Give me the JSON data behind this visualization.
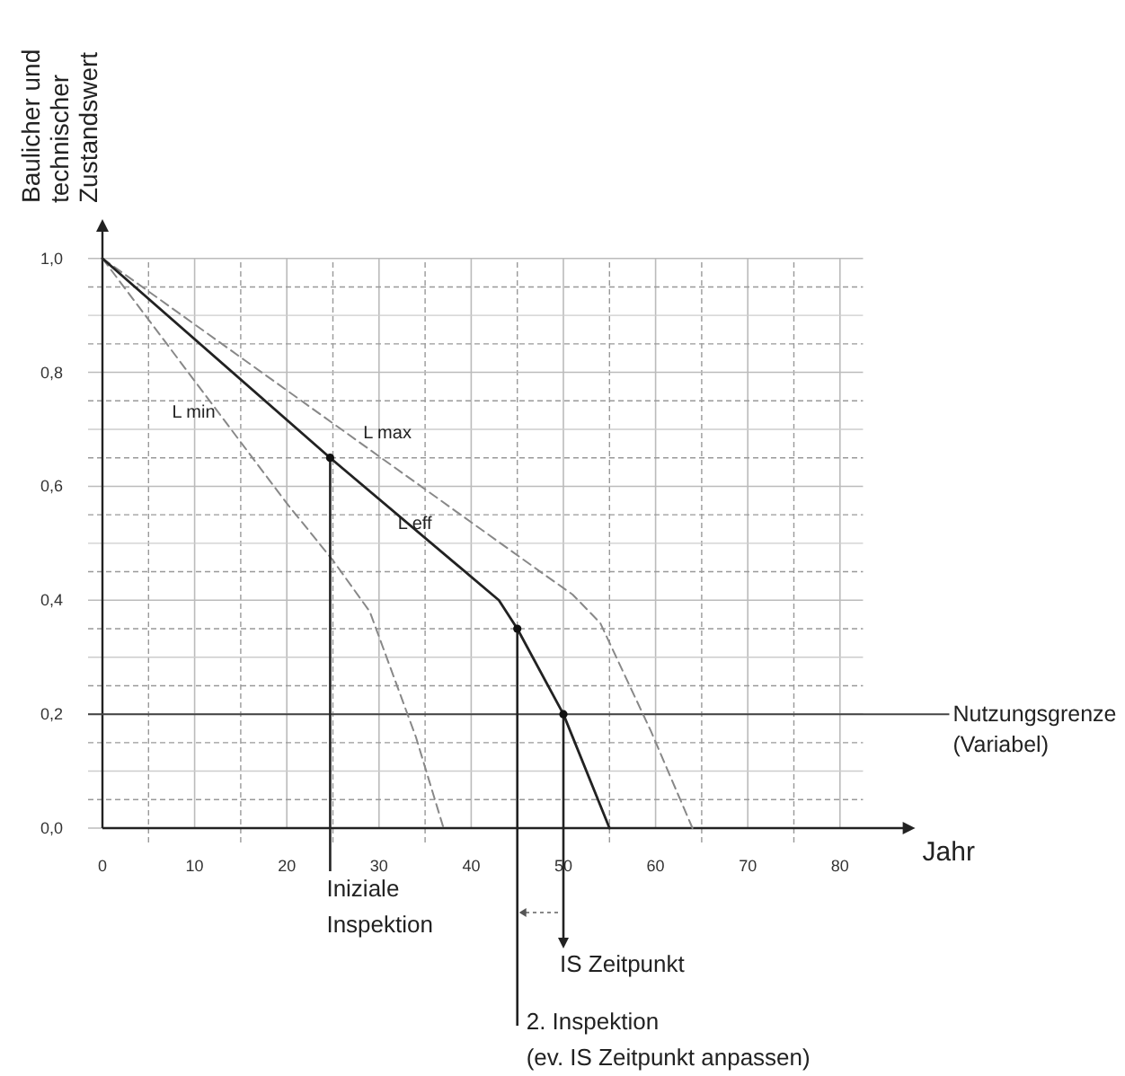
{
  "chart_data": {
    "type": "line",
    "ylabel": "Baulicher und\ntechnischer\nZustandswert",
    "xlabel": "Jahr",
    "xlim": [
      0,
      87
    ],
    "ylim": [
      0,
      1.05
    ],
    "xticks": [
      0,
      10,
      20,
      30,
      40,
      50,
      60,
      70,
      80
    ],
    "yticks": [
      {
        "value": 0,
        "label": "0,0"
      },
      {
        "value": 0.2,
        "label": "0,2"
      },
      {
        "value": 0.4,
        "label": "0,4"
      },
      {
        "value": 0.6,
        "label": "0,6"
      },
      {
        "value": 0.8,
        "label": "0,8"
      },
      {
        "value": 1.0,
        "label": "1,0"
      }
    ],
    "grid": true,
    "series": [
      {
        "name": "L max",
        "color": "#888888",
        "line_style": "dashed",
        "x": [
          0,
          47.5,
          51,
          54,
          59.5,
          64
        ],
        "values": [
          1.0,
          0.45,
          0.41,
          0.36,
          0.17,
          0
        ]
      },
      {
        "name": "L min",
        "color": "#888888",
        "line_style": "dashed",
        "x": [
          0,
          20,
          25,
          29,
          34,
          37
        ],
        "values": [
          1.0,
          0.57,
          0.47,
          0.38,
          0.16,
          0
        ]
      },
      {
        "name": "L eff",
        "color": "#222222",
        "line_style": "solid",
        "x": [
          0,
          24.7,
          43,
          45,
          50,
          55
        ],
        "values": [
          1.0,
          0.65,
          0.4,
          0.35,
          0.2,
          0
        ]
      }
    ],
    "ref_lines": [
      {
        "axis": "y",
        "value": 0.2,
        "label": "Nutzungsgrenze\n(Variabel)"
      }
    ],
    "annotations": [
      {
        "text": "Iniziale\nInspektion",
        "x": 24.7,
        "y": 0.65
      },
      {
        "text": "2. Inspektion\n(ev. IS Zeitpunkt anpassen)",
        "x": 45,
        "y": 0.35
      },
      {
        "text": "IS Zeitpunkt",
        "x": 50,
        "y": 0.2
      }
    ]
  }
}
